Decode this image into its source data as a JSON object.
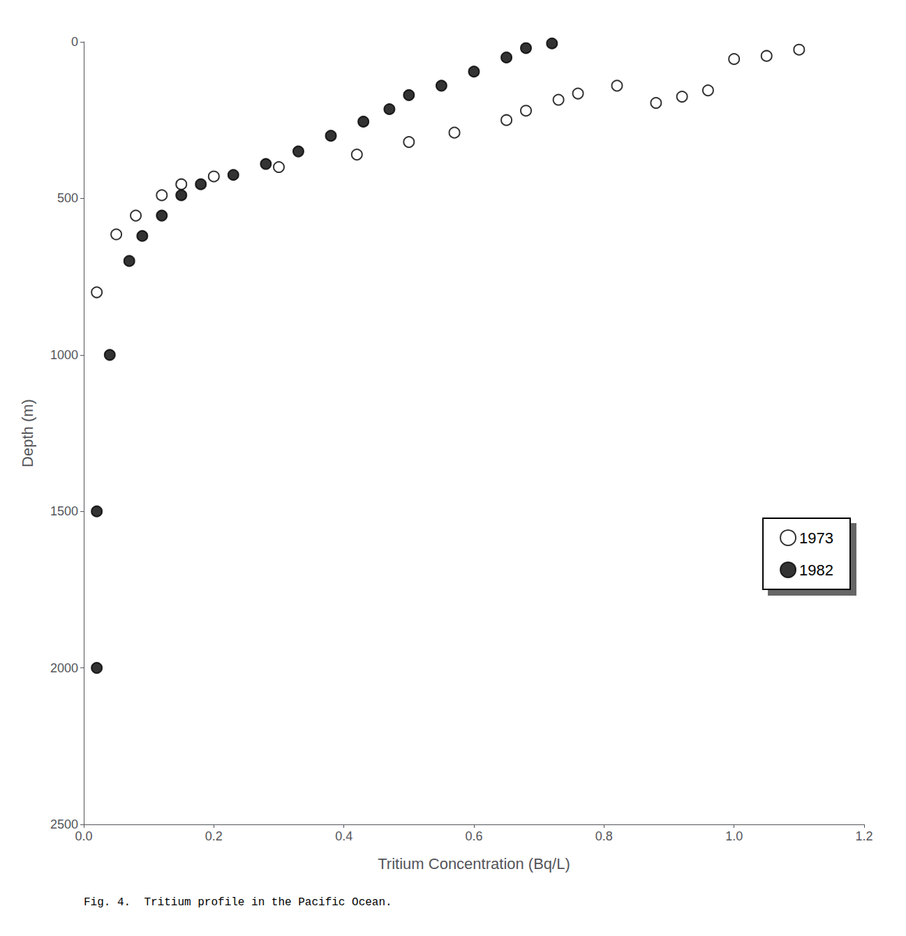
{
  "chart_data": {
    "type": "scatter",
    "caption": "Fig. 4.  Tritium profile in the Pacific Ocean.",
    "x_label": "Tritium Concentration (Bq/L)",
    "y_label": "Depth (m)",
    "xlim": [
      0,
      1.2
    ],
    "ylim": [
      2500,
      0
    ],
    "xticks": [
      {
        "value": 0,
        "label": "0.0"
      },
      0.2,
      0.4,
      0.6,
      0.8,
      {
        "value": 1.0,
        "label": "1.0"
      },
      1.2
    ],
    "yticks": [
      0,
      500,
      1000,
      1500,
      2000,
      2500
    ],
    "grid": false,
    "legend": "lower right",
    "series": [
      {
        "name": "1973",
        "color": "#000000",
        "marker": "open circle",
        "x": [
          0.02,
          0.05,
          0.08,
          0.12,
          0.15,
          0.2,
          0.3,
          0.42,
          0.5,
          0.57,
          0.65,
          0.68,
          0.73,
          0.76,
          0.82,
          0.88,
          0.92,
          0.96,
          1.0,
          1.05,
          1.1
        ],
        "values": [
          800,
          615,
          555,
          490,
          455,
          430,
          400,
          360,
          320,
          290,
          250,
          220,
          185,
          165,
          140,
          195,
          175,
          155,
          55,
          45,
          25
        ]
      },
      {
        "name": "1982",
        "color": "#000000",
        "marker": "circle",
        "x": [
          0.02,
          0.02,
          0.04,
          0.07,
          0.09,
          0.12,
          0.15,
          0.18,
          0.23,
          0.28,
          0.33,
          0.38,
          0.43,
          0.47,
          0.5,
          0.55,
          0.6,
          0.65,
          0.68,
          0.72
        ],
        "values": [
          2000,
          1500,
          1000,
          700,
          620,
          555,
          490,
          455,
          425,
          390,
          350,
          300,
          255,
          215,
          170,
          140,
          95,
          50,
          20,
          5
        ]
      }
    ]
  }
}
